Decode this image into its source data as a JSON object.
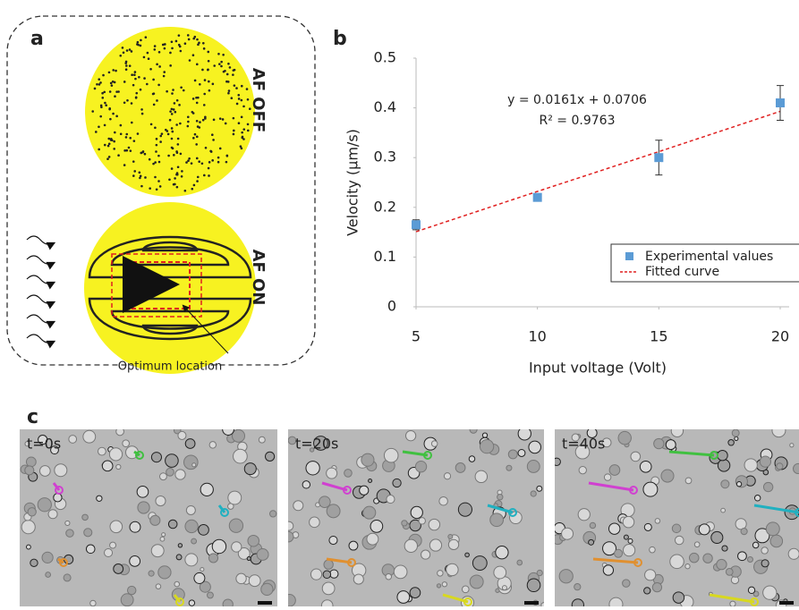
{
  "panels": {
    "a": {
      "label": "a",
      "top": "AF OFF",
      "bottom": "AF ON",
      "note": "Optimum location"
    },
    "c": {
      "label": "c",
      "frames": [
        "t=0s",
        "t=20s",
        "t=40s"
      ]
    }
  },
  "chart_data": {
    "type": "scatter",
    "panel": "b",
    "x": [
      5,
      10,
      15,
      20
    ],
    "xlim": [
      5,
      20
    ],
    "xticks": [
      5,
      10,
      15,
      20
    ],
    "ylim": [
      0,
      0.5
    ],
    "yticks": [
      0,
      0.1,
      0.2,
      0.3,
      0.4,
      0.5
    ],
    "x_label": "Input voltage (Volt)",
    "y_label": "Velocity (μm/s)",
    "annotations": [
      "y = 0.0161x + 0.0706",
      "R² = 0.9763"
    ],
    "legend": "lower right",
    "grid": false,
    "series": [
      {
        "name": "Experimental values",
        "color": "#5b9bd5",
        "values": [
          0.165,
          0.22,
          0.3,
          0.41
        ],
        "errors": [
          0.01,
          0.005,
          0.035,
          0.035
        ]
      },
      {
        "name": "Fitted curve",
        "color": "#e02020",
        "values": [
          0.151,
          0.232,
          0.312,
          0.393
        ]
      }
    ]
  }
}
